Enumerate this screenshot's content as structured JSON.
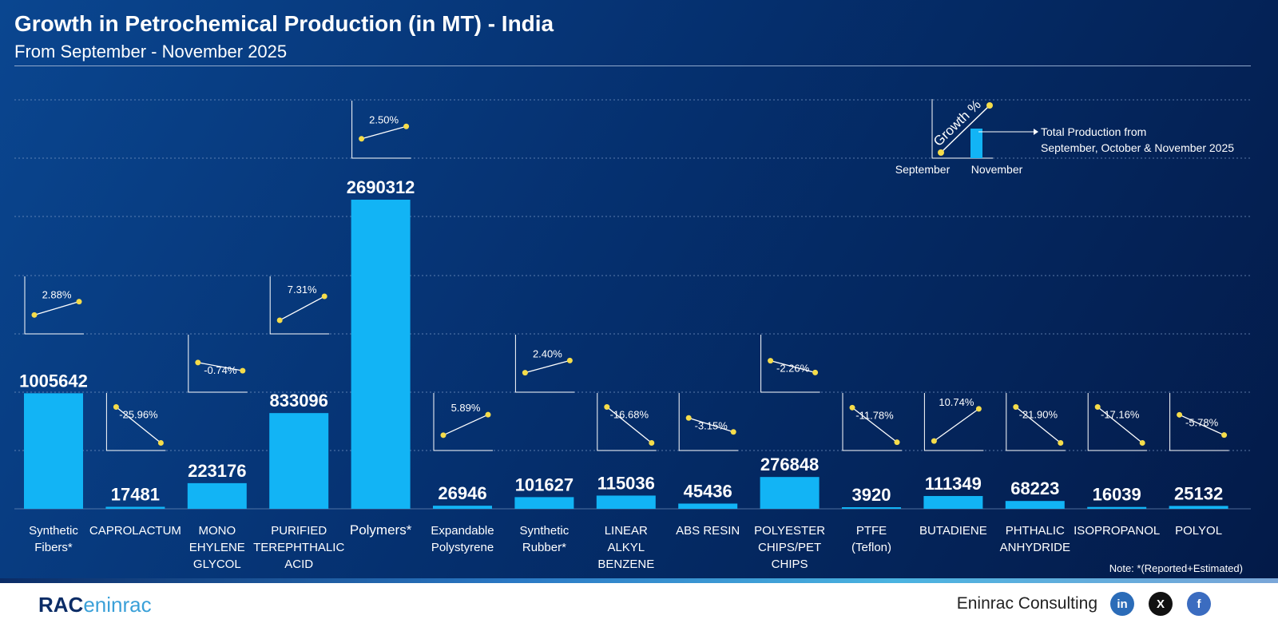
{
  "header": {
    "title": "Growth in Petrochemical Production (in MT) - India",
    "subtitle": "From September - November 2025"
  },
  "legend": {
    "growth_label": "Growth %",
    "bar_label_line1": "Total Production from",
    "bar_label_line2": "September, October & November 2025",
    "x_start": "September",
    "x_end": "November"
  },
  "note": "Note: *(Reported+Estimated)",
  "footer": {
    "brand": "Eninrac Consulting",
    "logo_text": "RAC",
    "logo_sub": "eninrac",
    "social": [
      "linkedin-icon",
      "x-icon",
      "facebook-icon"
    ]
  },
  "colors": {
    "bar": "#12b4f5",
    "dot": "#f5dc4a",
    "background": "#05306f"
  },
  "chart_data": {
    "type": "bar",
    "title": "Growth in Petrochemical Production (in MT) - India",
    "grid": true,
    "categories": [
      [
        "Synthetic",
        "Fibers*"
      ],
      [
        "CAPROLACTUM"
      ],
      [
        "MONO",
        "EHYLENE",
        "GLYCOL"
      ],
      [
        "PURIFIED",
        "TEREPHTHALIC",
        "ACID"
      ],
      [
        "Polymers*"
      ],
      [
        "Expandable",
        "Polystyrene"
      ],
      [
        "Synthetic",
        "Rubber*"
      ],
      [
        "LINEAR",
        "ALKYL",
        "BENZENE"
      ],
      [
        "ABS RESIN"
      ],
      [
        "POLYESTER",
        "CHIPS/PET",
        "CHIPS"
      ],
      [
        "PTFE",
        "(Teflon)"
      ],
      [
        "BUTADIENE"
      ],
      [
        "PHTHALIC",
        "ANHYDRIDE"
      ],
      [
        "ISOPROPANOL"
      ],
      [
        "POLYOL"
      ]
    ],
    "values": [
      1005642,
      17481,
      223176,
      833096,
      2690312,
      26946,
      101627,
      115036,
      45436,
      276848,
      3920,
      111349,
      68223,
      16039,
      25132
    ],
    "growth_pct": [
      2.88,
      -25.96,
      -0.74,
      7.31,
      2.5,
      5.89,
      2.4,
      -16.68,
      -3.15,
      -2.26,
      -11.78,
      10.74,
      -21.9,
      -17.16,
      -5.78
    ],
    "growth_labels": [
      "2.88%",
      "-25.96%",
      "-0.74%",
      "7.31%",
      "2.50%",
      "5.89%",
      "2.40%",
      "-16.68%",
      "-3.15%",
      "-2.26%",
      "-11.78%",
      "10.74%",
      "-21.90%",
      "-17.16%",
      "-5.78%"
    ]
  }
}
